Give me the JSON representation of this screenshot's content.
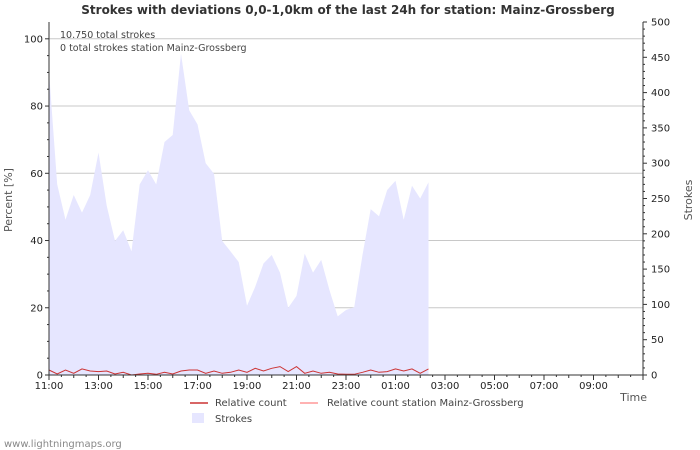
{
  "chart_data": {
    "type": "area",
    "title": "Strokes with deviations 0,0-1,0km of the last 24h for station: Mainz-Grossberg",
    "xlabel": "Time",
    "ylabel_left": "Percent   [%]",
    "ylabel_right": "Strokes",
    "ylim_left": [
      0,
      105
    ],
    "ylim_right": [
      0,
      500
    ],
    "x_ticks": [
      "11:00",
      "13:00",
      "15:00",
      "17:00",
      "19:00",
      "21:00",
      "23:00",
      "01:00",
      "03:00",
      "05:00",
      "07:00",
      "09:00"
    ],
    "y_left_ticks": [
      0,
      20,
      40,
      60,
      80,
      100
    ],
    "y_right_ticks": [
      0,
      50,
      100,
      150,
      200,
      250,
      300,
      350,
      400,
      450,
      500
    ],
    "annotations": [
      "10.750 total strokes",
      "0 total strokes station Mainz-Grossberg"
    ],
    "x_start_hour": 11,
    "x_step_hours": 0.3333,
    "series": [
      {
        "name": "Strokes",
        "axis": "right",
        "color": "#e6e6ff",
        "values": [
          430,
          270,
          220,
          255,
          230,
          255,
          315,
          240,
          190,
          205,
          175,
          270,
          290,
          270,
          330,
          340,
          455,
          375,
          355,
          300,
          285,
          190,
          175,
          160,
          98,
          125,
          158,
          170,
          145,
          95,
          112,
          172,
          145,
          163,
          120,
          83,
          92,
          96,
          170,
          235,
          225,
          262,
          275,
          220,
          268,
          250,
          273
        ]
      },
      {
        "name": "Relative count",
        "axis": "left",
        "color": "#cc3333",
        "values": [
          1.5,
          0.3,
          1.5,
          0.5,
          1.8,
          1.2,
          1.0,
          1.2,
          0.3,
          0.8,
          0.0,
          0.3,
          0.5,
          0.2,
          0.8,
          0.3,
          1.2,
          1.5,
          1.5,
          0.5,
          1.2,
          0.5,
          0.8,
          1.5,
          0.8,
          2.0,
          1.2,
          2.0,
          2.5,
          1.0,
          2.5,
          0.5,
          1.2,
          0.5,
          0.8,
          0.3,
          0.2,
          0.2,
          0.8,
          1.5,
          0.8,
          1.0,
          1.8,
          1.2,
          1.8,
          0.5,
          1.8
        ]
      },
      {
        "name": "Relative count station Mainz-Grossberg",
        "axis": "left",
        "color": "#ff9999",
        "values": [
          0,
          0,
          0,
          0,
          0,
          0,
          0,
          0,
          0,
          0,
          0,
          0,
          0,
          0,
          0,
          0,
          0,
          0,
          0,
          0,
          0,
          0,
          0,
          0,
          0,
          0,
          0,
          0,
          0,
          0,
          0,
          0,
          0,
          0,
          0,
          0,
          0,
          0,
          0,
          0,
          0,
          0,
          0,
          0,
          0,
          0,
          0
        ]
      }
    ],
    "legend": [
      {
        "label": "Relative count",
        "color": "#cc3333",
        "kind": "line"
      },
      {
        "label": "Relative count station Mainz-Grossberg",
        "color": "#ff9999",
        "kind": "line"
      },
      {
        "label": "Strokes",
        "color": "#e6e6ff",
        "kind": "area"
      }
    ]
  },
  "footer": "www.lightningmaps.org"
}
